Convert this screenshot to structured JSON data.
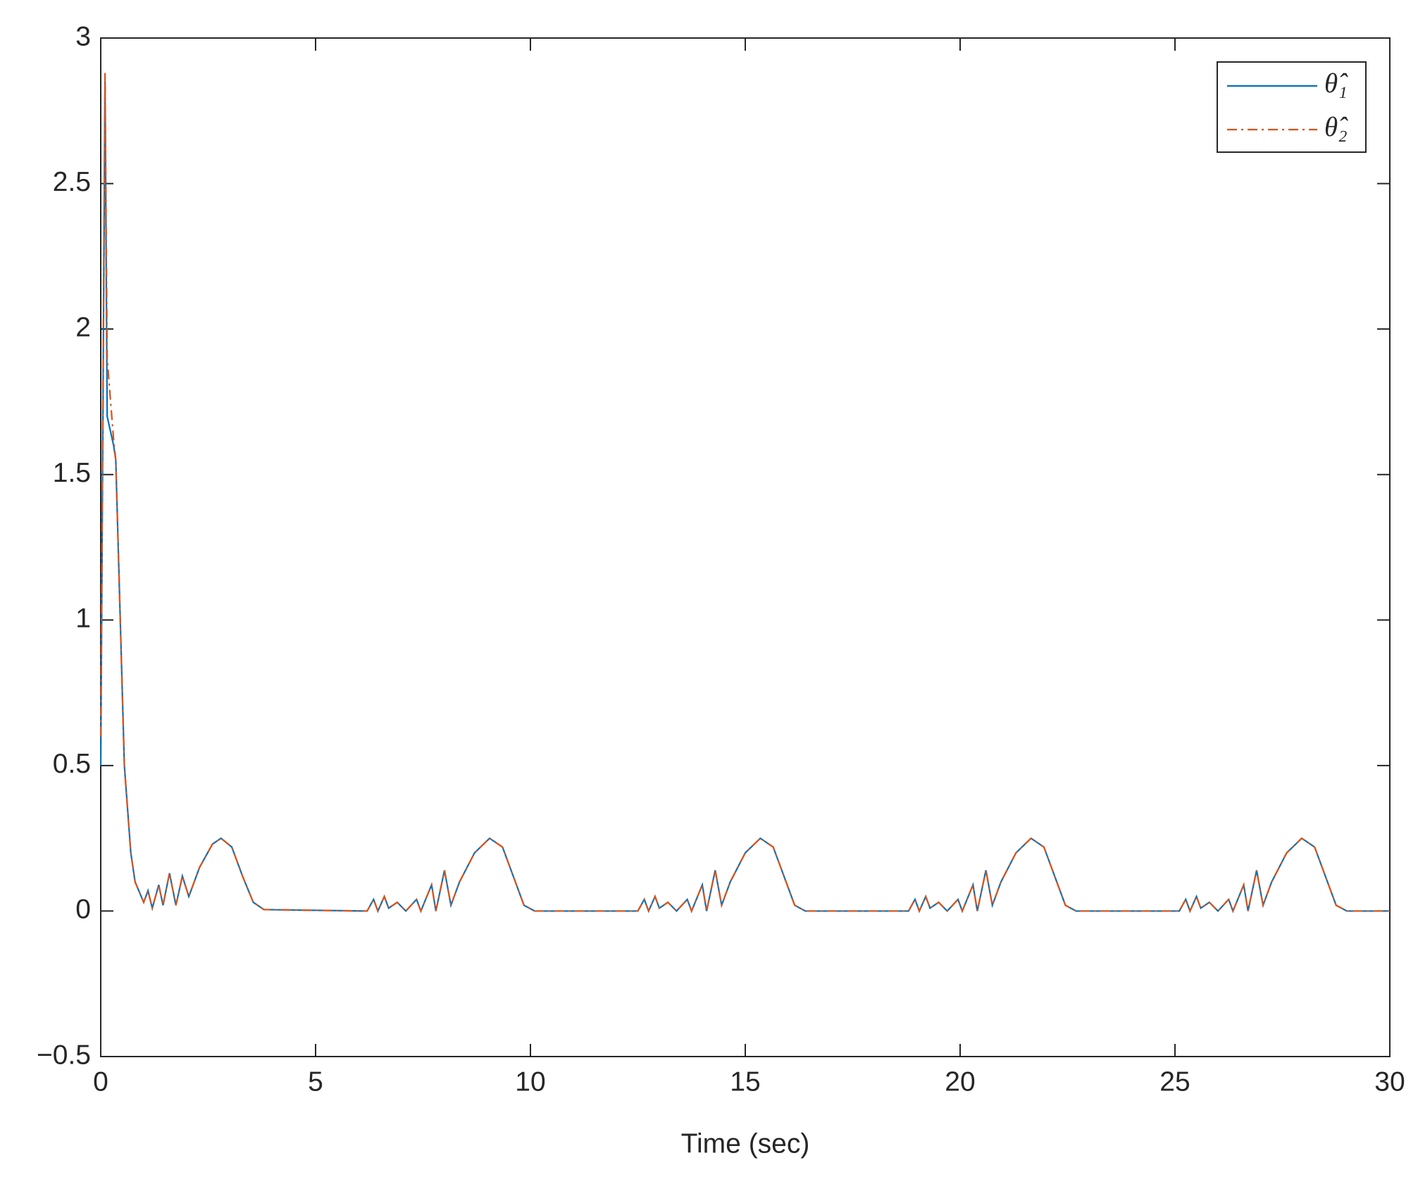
{
  "chart_data": {
    "type": "line",
    "xlabel": "Time (sec)",
    "x": [
      0,
      0.1,
      0.15,
      0.3,
      0.35,
      0.55,
      0.6,
      0.7,
      0.8,
      1.0,
      1.1,
      1.2,
      1.35,
      1.45,
      1.6,
      1.75,
      1.9,
      2.05,
      2.3,
      2.6,
      2.8,
      3.05,
      3.3,
      3.55,
      3.8,
      6.2,
      6.35,
      6.45,
      6.6,
      6.7,
      6.9,
      7.1,
      7.35,
      7.45,
      7.7,
      7.8,
      8.0,
      8.15,
      8.35,
      8.7,
      9.05,
      9.35,
      9.6,
      9.85,
      10.1,
      12.5,
      12.65,
      12.75,
      12.9,
      13.0,
      13.2,
      13.4,
      13.65,
      13.75,
      14.0,
      14.1,
      14.3,
      14.45,
      14.65,
      15.0,
      15.35,
      15.65,
      15.9,
      16.15,
      16.4,
      18.8,
      18.95,
      19.05,
      19.2,
      19.3,
      19.5,
      19.7,
      19.95,
      20.05,
      20.3,
      20.4,
      20.6,
      20.75,
      20.95,
      21.3,
      21.65,
      21.95,
      22.2,
      22.45,
      22.7,
      25.1,
      25.25,
      25.35,
      25.5,
      25.6,
      25.8,
      26.0,
      26.25,
      26.35,
      26.6,
      26.7,
      26.9,
      27.05,
      27.25,
      27.6,
      27.95,
      28.25,
      28.5,
      28.75,
      29.0,
      30
    ],
    "series": [
      {
        "name": "θ̂₁",
        "color": "#0072bd",
        "dash": "solid",
        "values": [
          0.5,
          2.85,
          1.7,
          1.6,
          1.55,
          0.5,
          0.4,
          0.2,
          0.1,
          0.03,
          0.07,
          0.01,
          0.09,
          0.02,
          0.13,
          0.02,
          0.12,
          0.05,
          0.15,
          0.23,
          0.25,
          0.22,
          0.12,
          0.03,
          0.005,
          0,
          0.04,
          0,
          0.05,
          0.01,
          0.03,
          0,
          0.04,
          0,
          0.09,
          0,
          0.14,
          0.02,
          0.1,
          0.2,
          0.25,
          0.22,
          0.12,
          0.02,
          0,
          0,
          0.04,
          0,
          0.05,
          0.01,
          0.03,
          0,
          0.04,
          0,
          0.09,
          0,
          0.14,
          0.02,
          0.1,
          0.2,
          0.25,
          0.22,
          0.12,
          0.02,
          0,
          0,
          0.04,
          0,
          0.05,
          0.01,
          0.03,
          0,
          0.04,
          0,
          0.09,
          0,
          0.14,
          0.02,
          0.1,
          0.2,
          0.25,
          0.22,
          0.12,
          0.02,
          0,
          0,
          0.04,
          0,
          0.05,
          0.01,
          0.03,
          0,
          0.04,
          0,
          0.09,
          0,
          0.14,
          0.02,
          0.1,
          0.2,
          0.25,
          0.22,
          0.12,
          0.02,
          0,
          0
        ]
      },
      {
        "name": "θ̂₂",
        "color": "#d95319",
        "dash": "dashdot",
        "values": [
          0.6,
          2.88,
          1.9,
          1.62,
          1.55,
          0.5,
          0.4,
          0.2,
          0.1,
          0.03,
          0.07,
          0.01,
          0.09,
          0.02,
          0.13,
          0.02,
          0.12,
          0.05,
          0.15,
          0.23,
          0.25,
          0.22,
          0.12,
          0.03,
          0.005,
          0,
          0.04,
          0,
          0.05,
          0.01,
          0.03,
          0,
          0.04,
          0,
          0.09,
          0,
          0.14,
          0.02,
          0.1,
          0.2,
          0.25,
          0.22,
          0.12,
          0.02,
          0,
          0,
          0.04,
          0,
          0.05,
          0.01,
          0.03,
          0,
          0.04,
          0,
          0.09,
          0,
          0.14,
          0.02,
          0.1,
          0.2,
          0.25,
          0.22,
          0.12,
          0.02,
          0,
          0,
          0.04,
          0,
          0.05,
          0.01,
          0.03,
          0,
          0.04,
          0,
          0.09,
          0,
          0.14,
          0.02,
          0.1,
          0.2,
          0.25,
          0.22,
          0.12,
          0.02,
          0,
          0,
          0.04,
          0,
          0.05,
          0.01,
          0.03,
          0,
          0.04,
          0,
          0.09,
          0,
          0.14,
          0.02,
          0.1,
          0.2,
          0.25,
          0.22,
          0.12,
          0.02,
          0,
          0
        ]
      }
    ],
    "xlim": [
      0,
      30
    ],
    "xticks": [
      0,
      5,
      10,
      15,
      20,
      25,
      30
    ],
    "ylim": [
      -0.5,
      3
    ],
    "yticks": [
      {
        "value": -0.5,
        "label": "−0.5"
      },
      0,
      0.5,
      1,
      1.5,
      2,
      2.5,
      3
    ],
    "grid": false,
    "legend": "northeast"
  }
}
